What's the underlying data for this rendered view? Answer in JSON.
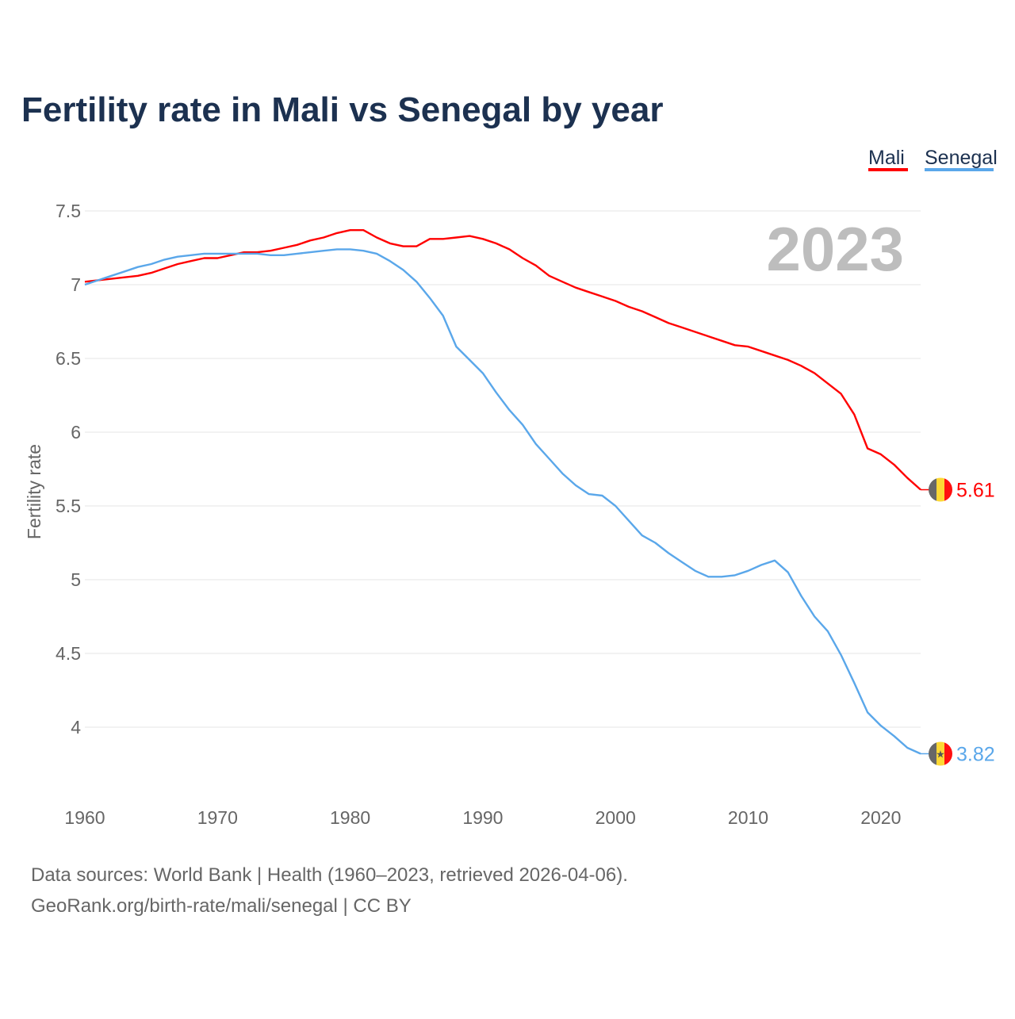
{
  "chart_data": {
    "type": "line",
    "title": "Fertility rate in Mali vs Senegal by year",
    "xlabel": "",
    "ylabel": "Fertility rate",
    "xlim": [
      1960,
      2023
    ],
    "ylim": [
      3.65,
      7.65
    ],
    "yticks": [
      "7.5",
      "7",
      "6.5",
      "6",
      "5.5",
      "5",
      "4.5",
      "4"
    ],
    "ytick_values": [
      7.5,
      7,
      6.5,
      6,
      5.5,
      5,
      4.5,
      4
    ],
    "xticks": [
      "1960",
      "1970",
      "1980",
      "1990",
      "2000",
      "2010",
      "2020"
    ],
    "xtick_values": [
      1960,
      1970,
      1980,
      1990,
      2000,
      2010,
      2020
    ],
    "grid": true,
    "legend_placement": "top-right",
    "year_label": "2023",
    "x": [
      1960,
      1961,
      1962,
      1963,
      1964,
      1965,
      1966,
      1967,
      1968,
      1969,
      1970,
      1971,
      1972,
      1973,
      1974,
      1975,
      1976,
      1977,
      1978,
      1979,
      1980,
      1981,
      1982,
      1983,
      1984,
      1985,
      1986,
      1987,
      1988,
      1989,
      1990,
      1991,
      1992,
      1993,
      1994,
      1995,
      1996,
      1997,
      1998,
      1999,
      2000,
      2001,
      2002,
      2003,
      2004,
      2005,
      2006,
      2007,
      2008,
      2009,
      2010,
      2011,
      2012,
      2013,
      2014,
      2015,
      2016,
      2017,
      2018,
      2019,
      2020,
      2021,
      2022,
      2023
    ],
    "series": [
      {
        "name": "Mali",
        "color": "#ff0000",
        "end_label": "5.61",
        "values": [
          7.02,
          7.03,
          7.04,
          7.05,
          7.06,
          7.08,
          7.11,
          7.14,
          7.16,
          7.18,
          7.18,
          7.2,
          7.22,
          7.22,
          7.23,
          7.25,
          7.27,
          7.3,
          7.32,
          7.35,
          7.37,
          7.37,
          7.32,
          7.28,
          7.26,
          7.26,
          7.31,
          7.31,
          7.32,
          7.33,
          7.31,
          7.28,
          7.24,
          7.18,
          7.13,
          7.06,
          7.02,
          6.98,
          6.95,
          6.92,
          6.89,
          6.85,
          6.82,
          6.78,
          6.74,
          6.71,
          6.68,
          6.65,
          6.62,
          6.59,
          6.58,
          6.55,
          6.52,
          6.49,
          6.45,
          6.4,
          6.33,
          6.26,
          6.12,
          5.89,
          5.85,
          5.78,
          5.69,
          5.61
        ]
      },
      {
        "name": "Senegal",
        "color": "#5aa7ea",
        "end_label": "3.82",
        "values": [
          7.0,
          7.03,
          7.06,
          7.09,
          7.12,
          7.14,
          7.17,
          7.19,
          7.2,
          7.21,
          7.21,
          7.21,
          7.21,
          7.21,
          7.2,
          7.2,
          7.21,
          7.22,
          7.23,
          7.24,
          7.24,
          7.23,
          7.21,
          7.16,
          7.1,
          7.02,
          6.91,
          6.79,
          6.58,
          6.49,
          6.4,
          6.27,
          6.15,
          6.05,
          5.92,
          5.82,
          5.72,
          5.64,
          5.58,
          5.57,
          5.5,
          5.4,
          5.3,
          5.25,
          5.18,
          5.12,
          5.06,
          5.02,
          5.02,
          5.03,
          5.06,
          5.1,
          5.13,
          5.05,
          4.89,
          4.75,
          4.65,
          4.49,
          4.3,
          4.1,
          4.01,
          3.94,
          3.86,
          3.82
        ]
      }
    ]
  },
  "footer": {
    "line1": "Data sources: World Bank | Health (1960–2023, retrieved 2026-04-06).",
    "line2": "GeoRank.org/birth-rate/mali/senegal | CC BY"
  }
}
